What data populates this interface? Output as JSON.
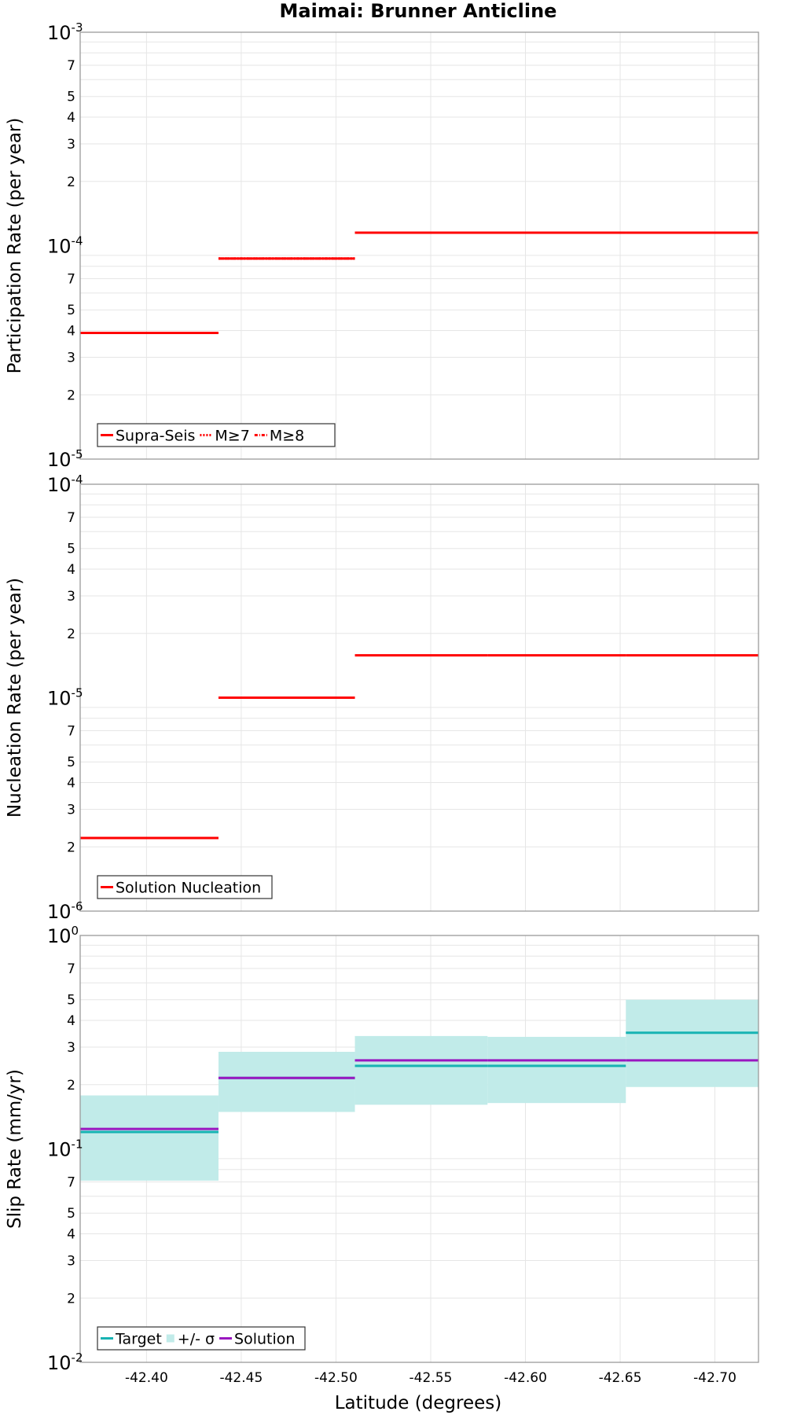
{
  "chart_data": {
    "title": "Maimai: Brunner Anticline",
    "type": "line",
    "xlabel": "Latitude (degrees)",
    "xlim": [
      -42.365,
      -42.723
    ],
    "x_ticks": [
      -42.4,
      -42.45,
      -42.5,
      -42.55,
      -42.6,
      -42.65,
      -42.7
    ],
    "x_tick_labels": [
      "-42.40",
      "-42.45",
      "-42.50",
      "-42.55",
      "-42.60",
      "-42.65",
      "-42.70"
    ],
    "section_bounds": [
      -42.365,
      -42.438,
      -42.51,
      -42.58,
      -42.653,
      -42.723
    ],
    "minor_tick_labels": [
      "2",
      "3",
      "4",
      "5",
      "7"
    ],
    "colors": {
      "red": "#ff0000",
      "teal": "#17b3b3",
      "band": "#c1ebe9",
      "purple": "#9a17c0"
    },
    "panels": [
      {
        "name": "participation",
        "ylabel": "Participation Rate (per year)",
        "ylim": [
          1e-05,
          0.001
        ],
        "decade_labels": [
          {
            "base": "10",
            "exp": "-3",
            "value": 0.001
          },
          {
            "base": "10",
            "exp": "-4",
            "value": 0.0001
          },
          {
            "base": "10",
            "exp": "-5",
            "value": 1e-05
          }
        ],
        "legend": [
          {
            "label": "Supra-Seis",
            "style": "solid",
            "color": "#ff0000"
          },
          {
            "label": "M≥7",
            "style": "dotted",
            "color": "#ff0000"
          },
          {
            "label": "M≥8",
            "style": "dashdot",
            "color": "#ff0000"
          }
        ],
        "series": [
          {
            "name": "Supra-Seis",
            "color": "#ff0000",
            "values": [
              3.9e-05,
              8.7e-05,
              0.000115,
              0.000115,
              0.000115
            ]
          },
          {
            "name": "M≥7",
            "color": "#ff0000",
            "values": [
              3.9e-05,
              8.7e-05,
              0.000115,
              0.000115,
              0.000115
            ]
          },
          {
            "name": "M≥8",
            "color": "#ff0000",
            "values": [
              3.9e-05,
              8.7e-05,
              0.000115,
              0.000115,
              0.000115
            ]
          }
        ]
      },
      {
        "name": "nucleation",
        "ylabel": "Nucleation Rate (per year)",
        "ylim": [
          1e-06,
          0.0001
        ],
        "decade_labels": [
          {
            "base": "10",
            "exp": "-4",
            "value": 0.0001
          },
          {
            "base": "10",
            "exp": "-5",
            "value": 1e-05
          },
          {
            "base": "10",
            "exp": "-6",
            "value": 1e-06
          }
        ],
        "legend": [
          {
            "label": "Solution Nucleation",
            "style": "solid",
            "color": "#ff0000"
          }
        ],
        "series": [
          {
            "name": "Solution Nucleation",
            "color": "#ff0000",
            "values": [
              2.2e-06,
              1e-05,
              1.58e-05,
              1.58e-05,
              1.58e-05
            ]
          }
        ]
      },
      {
        "name": "slip",
        "ylabel": "Slip Rate (mm/yr)",
        "ylim": [
          0.01,
          1
        ],
        "decade_labels": [
          {
            "base": "10",
            "exp": "0",
            "value": 1
          },
          {
            "base": "10",
            "exp": "-1",
            "value": 0.1
          },
          {
            "base": "10",
            "exp": "-2",
            "value": 0.01
          }
        ],
        "legend": [
          {
            "label": "Target",
            "style": "solid",
            "color": "#17b3b3"
          },
          {
            "label": "+/- σ",
            "style": "band",
            "color": "#c1ebe9"
          },
          {
            "label": "Solution",
            "style": "solid",
            "color": "#9a17c0"
          }
        ],
        "band": {
          "name": "+/- σ",
          "lower": [
            0.071,
            0.149,
            0.161,
            0.164,
            0.195
          ],
          "upper": [
            0.178,
            0.285,
            0.338,
            0.335,
            0.5
          ]
        },
        "series": [
          {
            "name": "Target",
            "color": "#17b3b3",
            "values": [
              0.12,
              0.215,
              0.245,
              0.245,
              0.35
            ]
          },
          {
            "name": "Solution",
            "color": "#9a17c0",
            "values": [
              0.124,
              0.215,
              0.26,
              0.26,
              0.26
            ]
          }
        ]
      }
    ]
  }
}
